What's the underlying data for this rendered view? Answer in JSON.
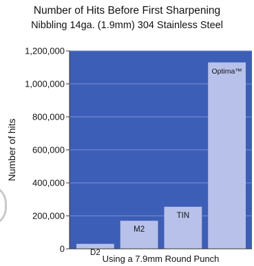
{
  "chart_data": {
    "type": "bar",
    "title": "Number of Hits Before First Sharpening",
    "subtitle": "Nibbling 14ga. (1.9mm) 304 Stainless Steel",
    "xlabel": "Using a 7.9mm Round Punch",
    "ylabel": "Number of hits",
    "categories": [
      "D2",
      "M2",
      "TIN",
      "Optima™"
    ],
    "values": [
      30000,
      170000,
      255000,
      1130000
    ],
    "ylim": [
      0,
      1200000
    ],
    "yticks": [
      0,
      200000,
      400000,
      600000,
      800000,
      1000000,
      1200000
    ],
    "ytick_labels": [
      "0",
      "200,000",
      "400,000",
      "600,000",
      "800,000",
      "1,000,000",
      "1,200,000"
    ],
    "grid": true,
    "legend": "none"
  },
  "colors": {
    "plot_background": "#3d5eb6",
    "bar_fill": "#b8c1ea",
    "gridline": "#7b93d6",
    "axis": "#333333"
  }
}
